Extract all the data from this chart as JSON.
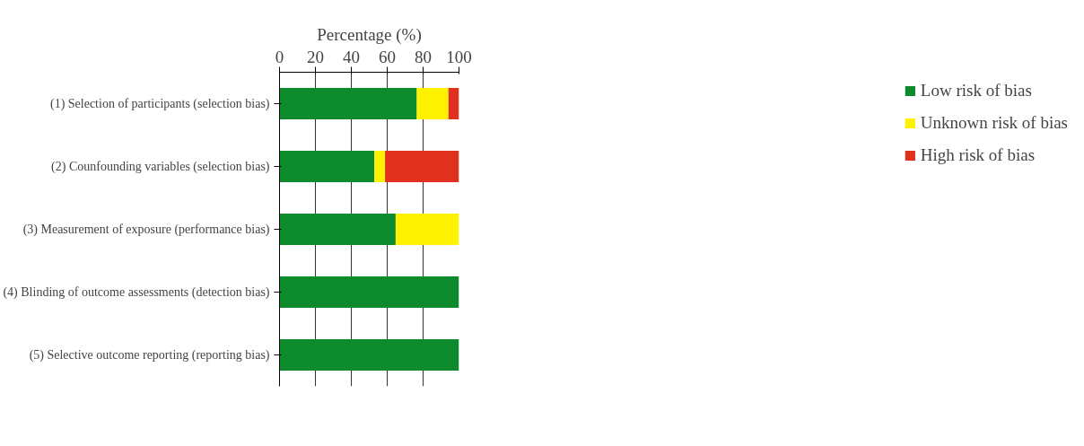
{
  "chart_data": {
    "type": "bar",
    "orientation": "horizontal",
    "stacked": true,
    "xlabel": "Percentage (%)",
    "categories": [
      "(1) Selection of participants (selection bias)",
      "(2) Counfounding variables (selection bias)",
      "(3) Measurement of exposure (performance bias)",
      "(4) Blinding of outcome assessments (detection bias)",
      "(5) Selective outcome reporting (reporting bias)"
    ],
    "series": [
      {
        "name": "Low risk of bias",
        "color": "#0c8a2c",
        "values": [
          76.5,
          52.9,
          64.7,
          100,
          100
        ]
      },
      {
        "name": "Unknown risk of bias",
        "color": "#fff200",
        "values": [
          17.6,
          5.9,
          35.3,
          0,
          0
        ]
      },
      {
        "name": "High risk of bias",
        "color": "#e0301e",
        "values": [
          5.9,
          41.2,
          0,
          0,
          0
        ]
      }
    ],
    "xlim": [
      0,
      100
    ],
    "xticks": [
      0,
      20,
      40,
      60,
      80,
      100
    ],
    "grid": "x",
    "legend": "right"
  }
}
